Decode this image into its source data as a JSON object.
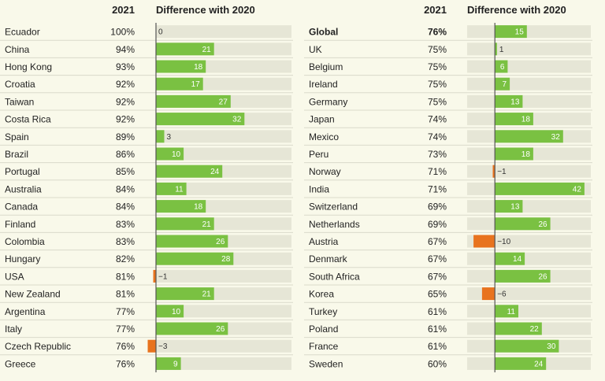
{
  "columns": {
    "year": "2021",
    "difference": "Difference with 2020"
  },
  "colors": {
    "background": "#f9f9ea",
    "track": "#e6e6d6",
    "positive": "#7ac142",
    "negative": "#e8731e",
    "divider": "#dadacb",
    "axis": "#555555"
  },
  "chart_data": [
    {
      "type": "bar",
      "panel": "left",
      "xlim": [
        0,
        49
      ],
      "rows": [
        {
          "country": "Ecuador",
          "share": "100%",
          "diff": 0,
          "diff_label": "0"
        },
        {
          "country": "China",
          "share": "94%",
          "diff": 21,
          "diff_label": "21"
        },
        {
          "country": "Hong Kong",
          "share": "93%",
          "diff": 18,
          "diff_label": "18"
        },
        {
          "country": "Croatia",
          "share": "92%",
          "diff": 17,
          "diff_label": "17"
        },
        {
          "country": "Taiwan",
          "share": "92%",
          "diff": 27,
          "diff_label": "27"
        },
        {
          "country": "Costa Rica",
          "share": "92%",
          "diff": 32,
          "diff_label": "32"
        },
        {
          "country": "Spain",
          "share": "89%",
          "diff": 3,
          "diff_label": "3"
        },
        {
          "country": "Brazil",
          "share": "86%",
          "diff": 10,
          "diff_label": "10"
        },
        {
          "country": "Portugal",
          "share": "85%",
          "diff": 24,
          "diff_label": "24"
        },
        {
          "country": "Australia",
          "share": "84%",
          "diff": 11,
          "diff_label": "11"
        },
        {
          "country": "Canada",
          "share": "84%",
          "diff": 18,
          "diff_label": "18"
        },
        {
          "country": "Finland",
          "share": "83%",
          "diff": 21,
          "diff_label": "21"
        },
        {
          "country": "Colombia",
          "share": "83%",
          "diff": 26,
          "diff_label": "26"
        },
        {
          "country": "Hungary",
          "share": "82%",
          "diff": 28,
          "diff_label": "28"
        },
        {
          "country": "USA",
          "share": "81%",
          "diff": -1,
          "diff_label": "−1"
        },
        {
          "country": "New Zealand",
          "share": "81%",
          "diff": 21,
          "diff_label": "21"
        },
        {
          "country": "Argentina",
          "share": "77%",
          "diff": 10,
          "diff_label": "10"
        },
        {
          "country": "Italy",
          "share": "77%",
          "diff": 26,
          "diff_label": "26"
        },
        {
          "country": "Czech Republic",
          "share": "76%",
          "diff": -3,
          "diff_label": "−3"
        },
        {
          "country": "Greece",
          "share": "76%",
          "diff": 9,
          "diff_label": "9"
        }
      ]
    },
    {
      "type": "bar",
      "panel": "right",
      "xlim": [
        -13,
        45
      ],
      "rows": [
        {
          "country": "Global",
          "share": "76%",
          "diff": 15,
          "diff_label": "15",
          "bold": true
        },
        {
          "country": "UK",
          "share": "75%",
          "diff": 1,
          "diff_label": "1"
        },
        {
          "country": "Belgium",
          "share": "75%",
          "diff": 6,
          "diff_label": "6"
        },
        {
          "country": "Ireland",
          "share": "75%",
          "diff": 7,
          "diff_label": "7"
        },
        {
          "country": "Germany",
          "share": "75%",
          "diff": 13,
          "diff_label": "13"
        },
        {
          "country": "Japan",
          "share": "74%",
          "diff": 18,
          "diff_label": "18"
        },
        {
          "country": "Mexico",
          "share": "74%",
          "diff": 32,
          "diff_label": "32"
        },
        {
          "country": "Peru",
          "share": "73%",
          "diff": 18,
          "diff_label": "18"
        },
        {
          "country": "Norway",
          "share": "71%",
          "diff": -1,
          "diff_label": "−1"
        },
        {
          "country": "India",
          "share": "71%",
          "diff": 42,
          "diff_label": "42"
        },
        {
          "country": "Switzerland",
          "share": "69%",
          "diff": 13,
          "diff_label": "13"
        },
        {
          "country": "Netherlands",
          "share": "69%",
          "diff": 26,
          "diff_label": "26"
        },
        {
          "country": "Austria",
          "share": "67%",
          "diff": -10,
          "diff_label": "−10"
        },
        {
          "country": "Denmark",
          "share": "67%",
          "diff": 14,
          "diff_label": "14"
        },
        {
          "country": "South Africa",
          "share": "67%",
          "diff": 26,
          "diff_label": "26"
        },
        {
          "country": "Korea",
          "share": "65%",
          "diff": -6,
          "diff_label": "−6"
        },
        {
          "country": "Turkey",
          "share": "61%",
          "diff": 11,
          "diff_label": "11"
        },
        {
          "country": "Poland",
          "share": "61%",
          "diff": 22,
          "diff_label": "22"
        },
        {
          "country": "France",
          "share": "61%",
          "diff": 30,
          "diff_label": "30"
        },
        {
          "country": "Sweden",
          "share": "60%",
          "diff": 24,
          "diff_label": "24"
        }
      ]
    }
  ]
}
